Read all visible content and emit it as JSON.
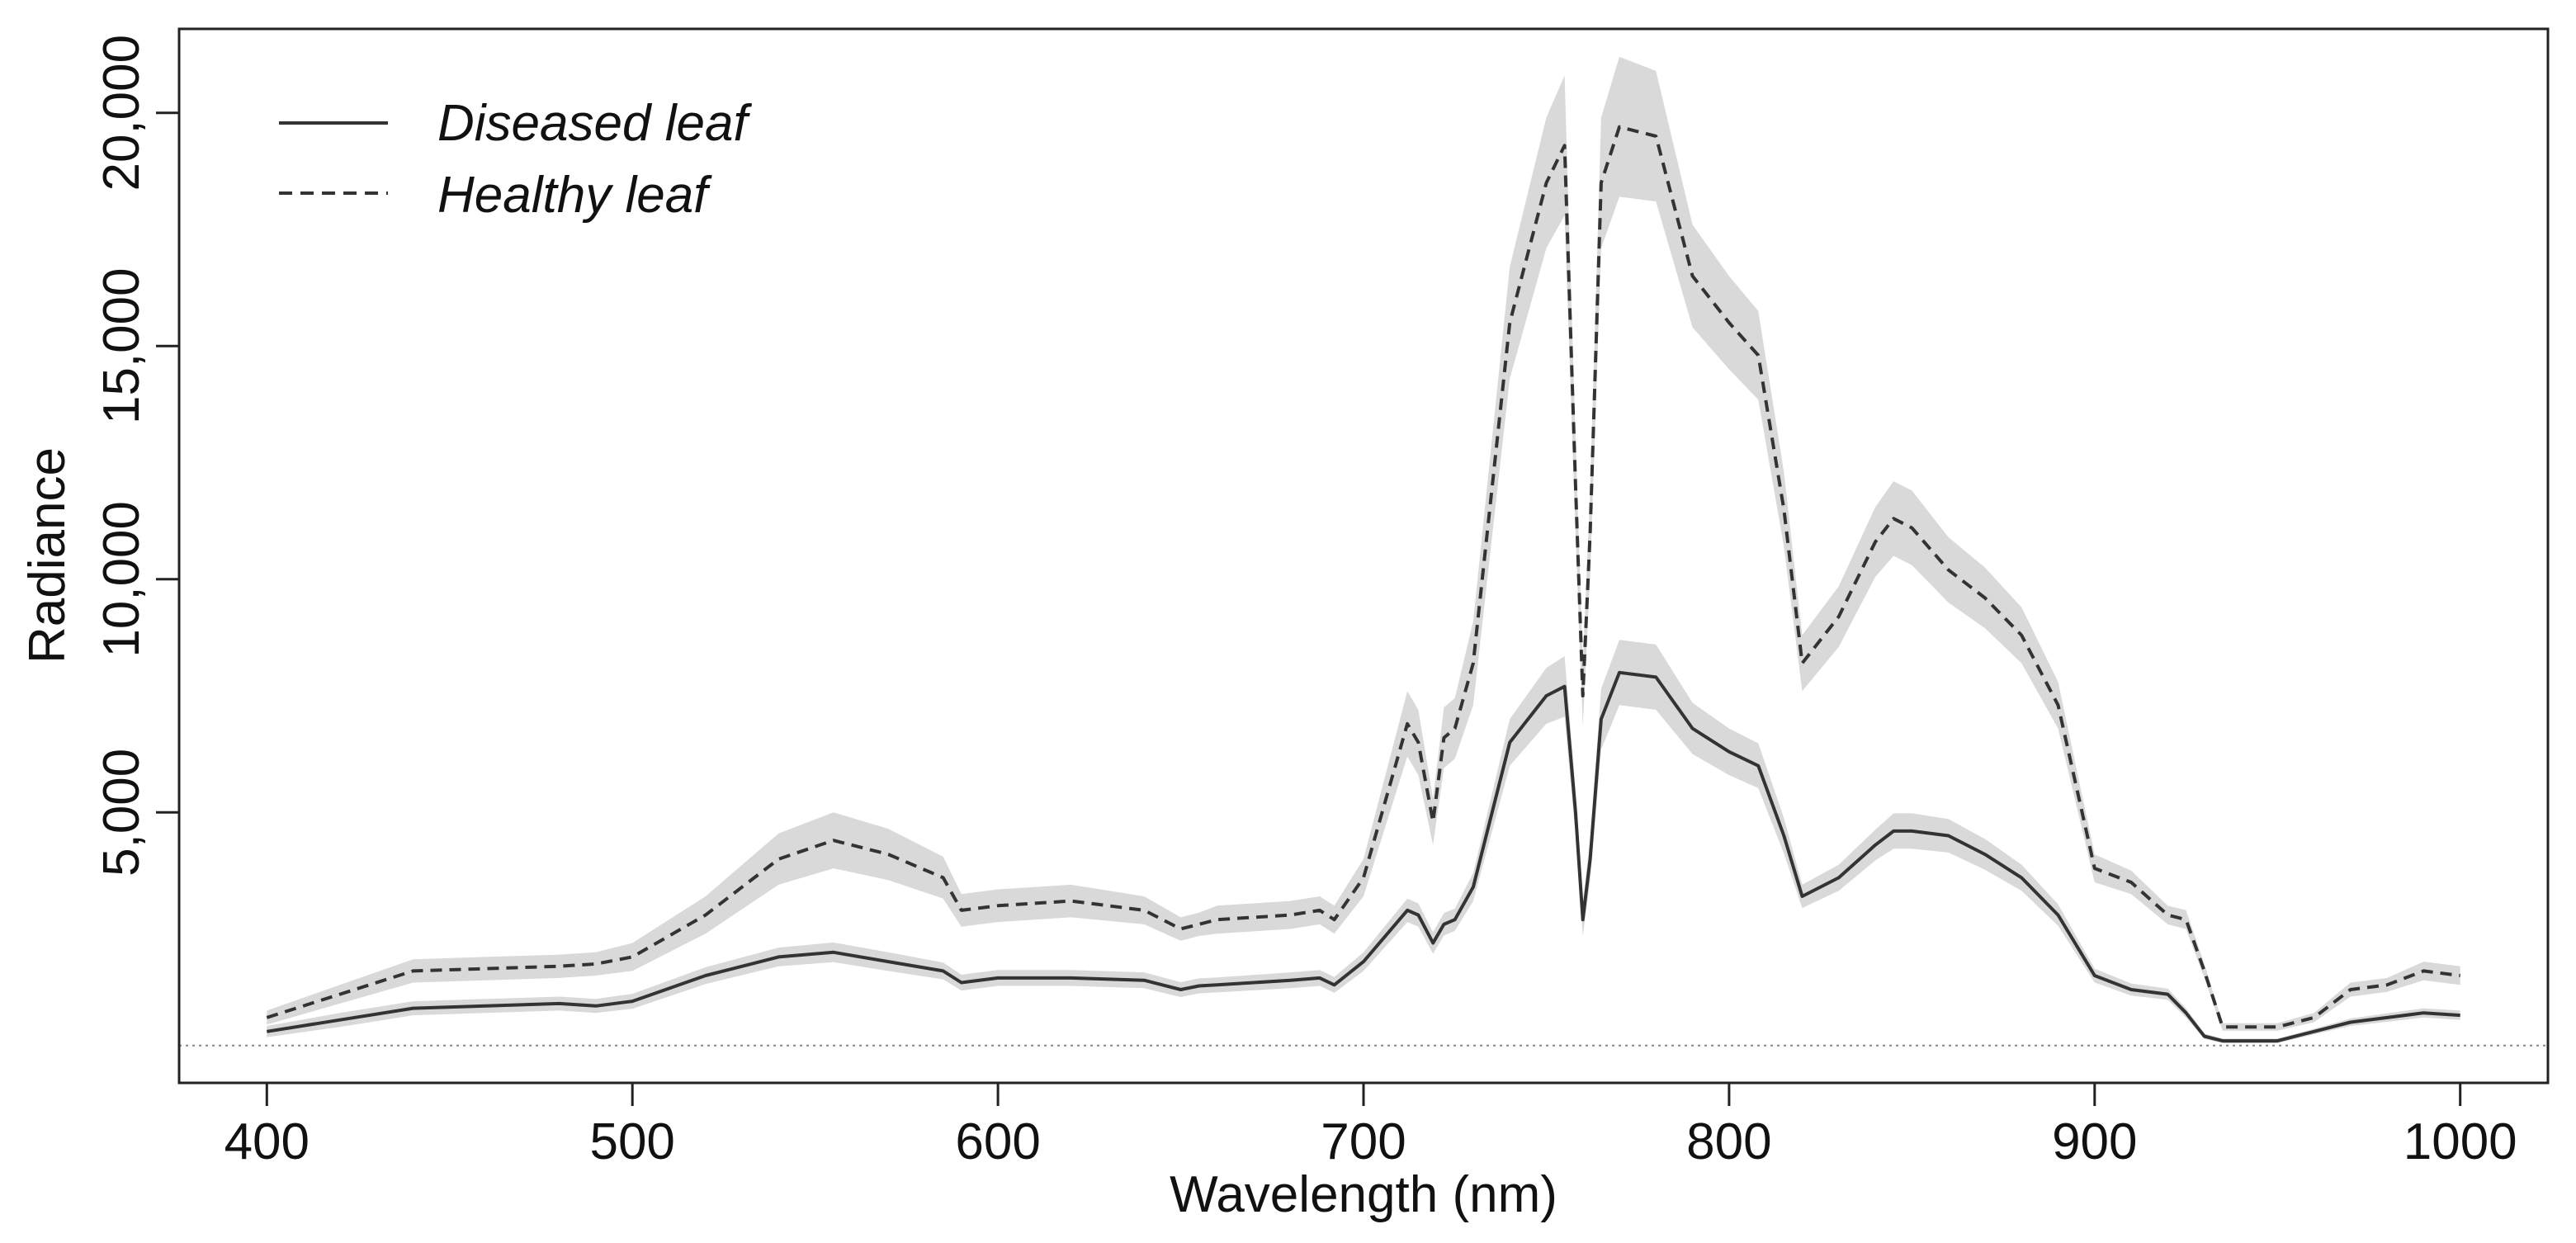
{
  "chart_data": {
    "type": "line",
    "title": "",
    "xlabel": "Wavelength (nm)",
    "ylabel": "Radiance",
    "xlim": [
      376,
      1024
    ],
    "ylim": [
      -800,
      21800
    ],
    "grid": false,
    "reference_line": 0,
    "legend_position": "top-left",
    "x_ticks": [
      400,
      500,
      600,
      700,
      800,
      900,
      1000
    ],
    "x_tick_labels": [
      "400",
      "500",
      "600",
      "700",
      "800",
      "900",
      "1000"
    ],
    "y_ticks": [
      5000,
      10000,
      15000,
      20000
    ],
    "y_tick_labels": [
      "5,000",
      "10,000",
      "15,000",
      "20,000"
    ],
    "band_color": "#d9d9d9",
    "line_color": "#333333",
    "series": [
      {
        "name": "Diseased leaf",
        "style": "solid",
        "x": [
          400,
          420,
          440,
          460,
          480,
          490,
          500,
          520,
          540,
          555,
          570,
          585,
          590,
          600,
          620,
          640,
          650,
          655,
          660,
          680,
          688,
          692,
          700,
          712,
          715,
          719,
          722,
          725,
          730,
          740,
          750,
          755,
          758,
          760,
          762,
          765,
          770,
          780,
          790,
          800,
          808,
          815,
          820,
          830,
          840,
          845,
          850,
          860,
          870,
          880,
          890,
          900,
          910,
          920,
          925,
          930,
          935,
          950,
          960,
          970,
          980,
          990,
          1000
        ],
        "y": [
          300,
          550,
          800,
          850,
          900,
          850,
          950,
          1500,
          1900,
          2000,
          1800,
          1600,
          1350,
          1450,
          1450,
          1400,
          1200,
          1280,
          1300,
          1400,
          1450,
          1300,
          1800,
          2900,
          2800,
          2200,
          2600,
          2700,
          3400,
          6500,
          7500,
          7700,
          5000,
          2700,
          4000,
          7000,
          8000,
          7900,
          6800,
          6300,
          6000,
          4500,
          3200,
          3600,
          4300,
          4600,
          4600,
          4500,
          4100,
          3600,
          2800,
          1500,
          1200,
          1100,
          700,
          200,
          100,
          100,
          300,
          500,
          600,
          700,
          650
        ],
        "band": [
          120,
          150,
          150,
          150,
          150,
          150,
          160,
          180,
          200,
          210,
          200,
          180,
          170,
          170,
          170,
          170,
          160,
          160,
          160,
          170,
          170,
          170,
          200,
          250,
          250,
          230,
          240,
          240,
          300,
          500,
          600,
          650,
          500,
          350,
          450,
          650,
          700,
          700,
          550,
          500,
          480,
          380,
          250,
          280,
          330,
          380,
          380,
          360,
          330,
          280,
          230,
          150,
          130,
          120,
          100,
          60,
          50,
          50,
          60,
          80,
          90,
          100,
          100
        ]
      },
      {
        "name": "Healthy leaf",
        "style": "dashed",
        "x": [
          400,
          420,
          440,
          460,
          480,
          490,
          500,
          520,
          540,
          555,
          570,
          585,
          590,
          600,
          620,
          640,
          650,
          655,
          660,
          680,
          688,
          692,
          700,
          712,
          715,
          719,
          722,
          725,
          730,
          740,
          750,
          755,
          758,
          760,
          762,
          765,
          770,
          780,
          790,
          800,
          808,
          815,
          820,
          830,
          840,
          845,
          850,
          860,
          870,
          880,
          890,
          900,
          910,
          920,
          925,
          930,
          935,
          950,
          960,
          970,
          980,
          990,
          1000
        ],
        "y": [
          600,
          1100,
          1600,
          1650,
          1700,
          1750,
          1900,
          2800,
          4000,
          4400,
          4100,
          3600,
          2900,
          3000,
          3100,
          2900,
          2500,
          2600,
          2700,
          2800,
          2900,
          2700,
          3600,
          6900,
          6500,
          4800,
          6600,
          6800,
          8200,
          15500,
          18500,
          19300,
          12000,
          7500,
          11000,
          18500,
          19700,
          19500,
          16500,
          15500,
          14800,
          11500,
          8200,
          9200,
          10800,
          11300,
          11100,
          10200,
          9600,
          8800,
          7300,
          3800,
          3500,
          2800,
          2700,
          1600,
          400,
          400,
          600,
          1200,
          1300,
          1600,
          1500
        ],
        "band": [
          150,
          200,
          250,
          250,
          250,
          250,
          300,
          400,
          550,
          600,
          550,
          450,
          350,
          350,
          350,
          300,
          250,
          250,
          300,
          300,
          300,
          300,
          400,
          700,
          700,
          500,
          650,
          650,
          900,
          1200,
          1400,
          1500,
          1000,
          650,
          900,
          1400,
          1500,
          1400,
          1100,
          1000,
          950,
          800,
          600,
          650,
          750,
          800,
          800,
          700,
          650,
          600,
          500,
          300,
          250,
          200,
          200,
          150,
          80,
          80,
          100,
          150,
          150,
          200,
          200
        ]
      }
    ]
  }
}
